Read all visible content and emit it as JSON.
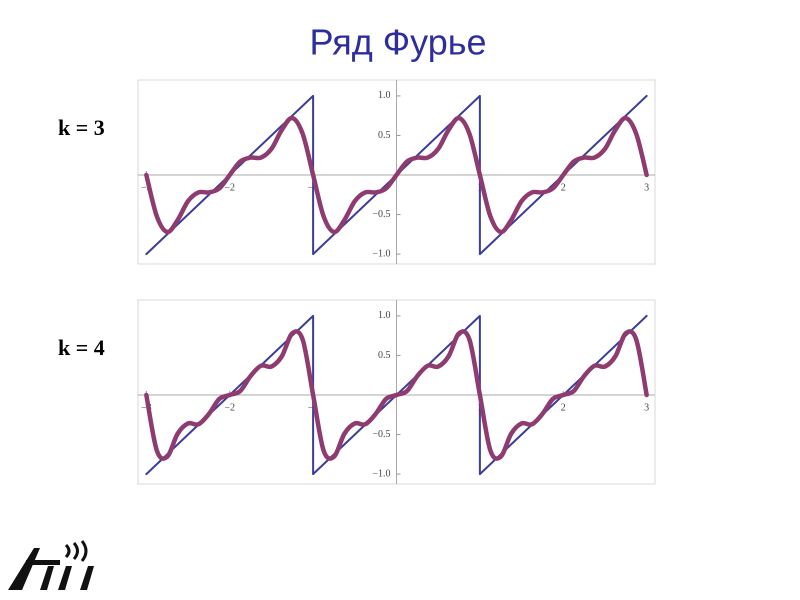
{
  "title": "Ряд Фурье",
  "chart_data": [
    {
      "type": "line",
      "title": "k = 3",
      "xlim": [
        -3.1,
        3.1
      ],
      "ylim": [
        -1.1,
        1.1
      ],
      "xticks": [
        {
          "value": -3,
          "label": "−3"
        },
        {
          "value": -2,
          "label": "−2"
        },
        {
          "value": -1,
          "label": "−1"
        },
        1,
        2,
        3
      ],
      "yticks": [
        {
          "value": -1,
          "label": "−1.0"
        },
        {
          "value": -0.5,
          "label": "−0.5"
        },
        0.5,
        {
          "value": 1,
          "label": "1.0"
        }
      ],
      "series": [
        {
          "x": [
            -3,
            -1,
            -1,
            1,
            1,
            3
          ],
          "values": [
            -1,
            1,
            -1,
            1,
            -1,
            1
          ],
          "color": "#3c3c9c",
          "width": 2,
          "smooth": false
        },
        {
          "x": [
            -3,
            -2.875,
            -2.75,
            -2.625,
            -2.5,
            -2.375,
            -2.25,
            -2.125,
            -2,
            -1.875,
            -1.75,
            -1.625,
            -1.5,
            -1.375,
            -1.25,
            -1.125,
            -1,
            -0.875,
            -0.75,
            -0.625,
            -0.5,
            -0.375,
            -0.25,
            -0.125,
            0,
            0.125,
            0.25,
            0.375,
            0.5,
            0.625,
            0.75,
            0.875,
            1,
            1.125,
            1.25,
            1.375,
            1.5,
            1.625,
            1.75,
            1.875,
            2,
            2.125,
            2.25,
            2.375,
            2.5,
            2.625,
            2.75,
            2.875,
            3
          ],
          "values": [
            0,
            -0.52,
            -0.72,
            -0.57,
            -0.33,
            -0.22,
            -0.22,
            -0.17,
            0,
            0.17,
            0.22,
            0.22,
            0.33,
            0.57,
            0.72,
            0.52,
            0,
            -0.52,
            -0.72,
            -0.57,
            -0.33,
            -0.22,
            -0.22,
            -0.17,
            0,
            0.17,
            0.22,
            0.22,
            0.33,
            0.57,
            0.72,
            0.52,
            0,
            -0.52,
            -0.72,
            -0.57,
            -0.33,
            -0.22,
            -0.22,
            -0.17,
            0,
            0.17,
            0.22,
            0.22,
            0.33,
            0.57,
            0.72,
            0.52,
            0
          ],
          "color": "#8e3b6f",
          "width": 4.5,
          "smooth": true
        }
      ]
    },
    {
      "type": "line",
      "title": "k = 4",
      "xlim": [
        -3.1,
        3.1
      ],
      "ylim": [
        -1.1,
        1.1
      ],
      "xticks": [
        {
          "value": -3,
          "label": "−3"
        },
        {
          "value": -2,
          "label": "−2"
        },
        {
          "value": -1,
          "label": "−1"
        },
        1,
        2,
        3
      ],
      "yticks": [
        {
          "value": -1,
          "label": "−1.0"
        },
        {
          "value": -0.5,
          "label": "−0.5"
        },
        0.5,
        {
          "value": 1,
          "label": "1.0"
        }
      ],
      "series": [
        {
          "x": [
            -3,
            -1,
            -1,
            1,
            1,
            3
          ],
          "values": [
            -1,
            1,
            -1,
            1,
            -1,
            1
          ],
          "color": "#3c3c9c",
          "width": 2,
          "smooth": false
        },
        {
          "x": [
            -3,
            -2.875,
            -2.75,
            -2.625,
            -2.5,
            -2.375,
            -2.25,
            -2.125,
            -2,
            -1.875,
            -1.75,
            -1.625,
            -1.5,
            -1.375,
            -1.25,
            -1.125,
            -1,
            -0.875,
            -0.75,
            -0.625,
            -0.5,
            -0.375,
            -0.25,
            -0.125,
            0,
            0.125,
            0.25,
            0.375,
            0.5,
            0.625,
            0.75,
            0.875,
            1,
            1.125,
            1.25,
            1.375,
            1.5,
            1.625,
            1.75,
            1.875,
            2,
            2.125,
            2.25,
            2.375,
            2.5,
            2.625,
            2.75,
            2.875,
            3
          ],
          "values": [
            0,
            -0.7,
            -0.78,
            -0.49,
            -0.36,
            -0.37,
            -0.24,
            -0.05,
            0,
            0.05,
            0.24,
            0.37,
            0.36,
            0.49,
            0.78,
            0.7,
            0,
            -0.7,
            -0.78,
            -0.49,
            -0.36,
            -0.37,
            -0.24,
            -0.05,
            0,
            0.05,
            0.24,
            0.37,
            0.36,
            0.49,
            0.78,
            0.7,
            0,
            -0.7,
            -0.78,
            -0.49,
            -0.36,
            -0.37,
            -0.24,
            -0.05,
            0,
            0.05,
            0.24,
            0.37,
            0.36,
            0.49,
            0.78,
            0.7,
            0
          ],
          "color": "#8e3b6f",
          "width": 4.5,
          "smooth": true
        }
      ]
    }
  ]
}
